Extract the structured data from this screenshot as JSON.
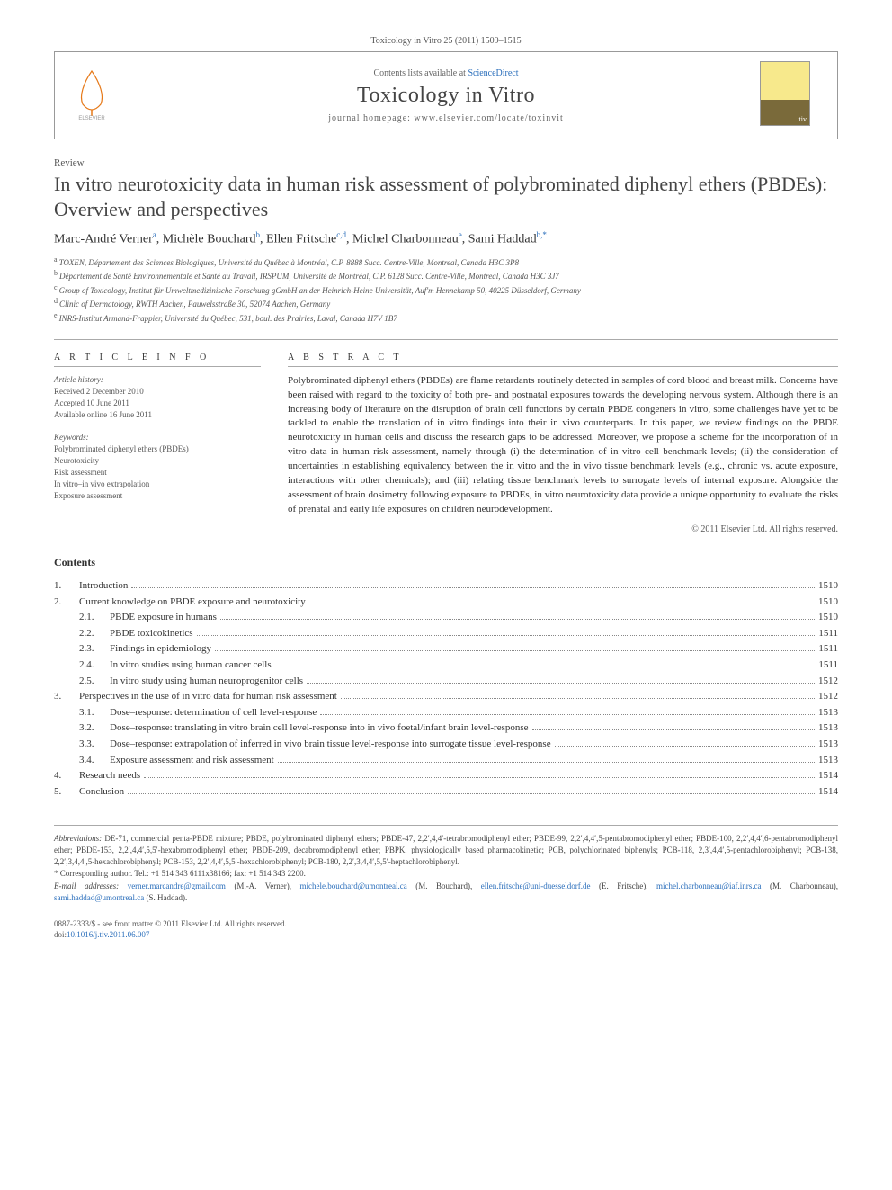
{
  "citation": "Toxicology in Vitro 25 (2011) 1509–1515",
  "masthead": {
    "contents_prefix": "Contents lists available at ",
    "contents_link": "ScienceDirect",
    "journal": "Toxicology in Vitro",
    "homepage": "journal homepage: www.elsevier.com/locate/toxinvit",
    "publisher": "ELSEVIER",
    "cover_label": "Toxicology in Vitro"
  },
  "article": {
    "type": "Review",
    "title": "In vitro neurotoxicity data in human risk assessment of polybrominated diphenyl ethers (PBDEs): Overview and perspectives",
    "authors_html": "Marc-André Verner<sup>a</sup>, Michèle Bouchard<sup>b</sup>, Ellen Fritsche<sup>c,d</sup>, Michel Charbonneau<sup>e</sup>, Sami Haddad<sup>b,*</sup>",
    "affiliations": [
      {
        "sup": "a",
        "text": "TOXEN, Département des Sciences Biologiques, Université du Québec à Montréal, C.P. 8888 Succ. Centre-Ville, Montreal, Canada H3C 3P8"
      },
      {
        "sup": "b",
        "text": "Département de Santé Environnementale et Santé au Travail, IRSPUM, Université de Montréal, C.P. 6128 Succ. Centre-Ville, Montreal, Canada H3C 3J7"
      },
      {
        "sup": "c",
        "text": "Group of Toxicology, Institut für Umweltmedizinische Forschung gGmbH an der Heinrich-Heine Universität, Auf'm Hennekamp 50, 40225 Düsseldorf, Germany"
      },
      {
        "sup": "d",
        "text": "Clinic of Dermatology, RWTH Aachen, Pauwelsstraße 30, 52074 Aachen, Germany"
      },
      {
        "sup": "e",
        "text": "INRS-Institut Armand-Frappier, Université du Québec, 531, boul. des Prairies, Laval, Canada H7V 1B7"
      }
    ]
  },
  "info": {
    "heading": "A R T I C L E   I N F O",
    "history_label": "Article history:",
    "history": [
      "Received 2 December 2010",
      "Accepted 10 June 2011",
      "Available online 16 June 2011"
    ],
    "keywords_label": "Keywords:",
    "keywords": [
      "Polybrominated diphenyl ethers (PBDEs)",
      "Neurotoxicity",
      "Risk assessment",
      "In vitro–in vivo extrapolation",
      "Exposure assessment"
    ]
  },
  "abstract": {
    "heading": "A B S T R A C T",
    "text": "Polybrominated diphenyl ethers (PBDEs) are flame retardants routinely detected in samples of cord blood and breast milk. Concerns have been raised with regard to the toxicity of both pre- and postnatal exposures towards the developing nervous system. Although there is an increasing body of literature on the disruption of brain cell functions by certain PBDE congeners in vitro, some challenges have yet to be tackled to enable the translation of in vitro findings into their in vivo counterparts. In this paper, we review findings on the PBDE neurotoxicity in human cells and discuss the research gaps to be addressed. Moreover, we propose a scheme for the incorporation of in vitro data in human risk assessment, namely through (i) the determination of in vitro cell benchmark levels; (ii) the consideration of uncertainties in establishing equivalency between the in vitro and the in vivo tissue benchmark levels (e.g., chronic vs. acute exposure, interactions with other chemicals); and (iii) relating tissue benchmark levels to surrogate levels of internal exposure. Alongside the assessment of brain dosimetry following exposure to PBDEs, in vitro neurotoxicity data provide a unique opportunity to evaluate the risks of prenatal and early life exposures on children neurodevelopment.",
    "copyright": "© 2011 Elsevier Ltd. All rights reserved."
  },
  "contents": {
    "heading": "Contents",
    "items": [
      {
        "num": "1.",
        "label": "Introduction",
        "page": "1510",
        "sub": []
      },
      {
        "num": "2.",
        "label": "Current knowledge on PBDE exposure and neurotoxicity",
        "page": "1510",
        "sub": [
          {
            "num": "2.1.",
            "label": "PBDE exposure in humans",
            "page": "1510"
          },
          {
            "num": "2.2.",
            "label": "PBDE toxicokinetics",
            "page": "1511"
          },
          {
            "num": "2.3.",
            "label": "Findings in epidemiology",
            "page": "1511"
          },
          {
            "num": "2.4.",
            "label": "In vitro studies using human cancer cells",
            "page": "1511"
          },
          {
            "num": "2.5.",
            "label": "In vitro study using human neuroprogenitor cells",
            "page": "1512"
          }
        ]
      },
      {
        "num": "3.",
        "label": "Perspectives in the use of in vitro data for human risk assessment",
        "page": "1512",
        "sub": [
          {
            "num": "3.1.",
            "label": "Dose–response: determination of cell level-response",
            "page": "1513"
          },
          {
            "num": "3.2.",
            "label": "Dose–response: translating in vitro brain cell level-response into in vivo foetal/infant brain level-response",
            "page": "1513"
          },
          {
            "num": "3.3.",
            "label": "Dose–response: extrapolation of inferred in vivo brain tissue level-response into surrogate tissue level-response",
            "page": "1513"
          },
          {
            "num": "3.4.",
            "label": "Exposure assessment and risk assessment",
            "page": "1513"
          }
        ]
      },
      {
        "num": "4.",
        "label": "Research needs",
        "page": "1514",
        "sub": []
      },
      {
        "num": "5.",
        "label": "Conclusion",
        "page": "1514",
        "sub": []
      }
    ]
  },
  "footnotes": {
    "abbrev_label": "Abbreviations:",
    "abbrev": " DE-71, commercial penta-PBDE mixture; PBDE, polybrominated diphenyl ethers; PBDE-47, 2,2′,4,4′-tetrabromodiphenyl ether; PBDE-99, 2,2′,4,4′,5-pentabromodiphenyl ether; PBDE-100, 2,2′,4,4′,6-pentabromodiphenyl ether; PBDE-153, 2,2′,4,4′,5,5′-hexabromodiphenyl ether; PBDE-209, decabromodiphenyl ether; PBPK, physiologically based pharmacokinetic; PCB, polychlorinated biphenyls; PCB-118, 2,3′,4,4′,5-pentachlorobiphenyl; PCB-138, 2,2′,3,4,4′,5-hexachlorobiphenyl; PCB-153, 2,2′,4,4′,5,5′-hexachlorobiphenyl; PCB-180, 2,2′,3,4,4′,5,5′-heptachlorobiphenyl.",
    "corresponding": "* Corresponding author. Tel.: +1 514 343 6111x38166; fax: +1 514 343 2200.",
    "emails_label": "E-mail addresses:",
    "emails": " verner.marcandre@gmail.com (M.-A. Verner), michele.bouchard@umontreal.ca (M. Bouchard), ellen.fritsche@uni-duesseldorf.de (E. Fritsche), michel.charbonneau@iaf.inrs.ca (M. Charbonneau), sami.haddad@umontreal.ca (S. Haddad)."
  },
  "bottom": {
    "issn": "0887-2333/$ - see front matter © 2011 Elsevier Ltd. All rights reserved.",
    "doi_label": "doi:",
    "doi": "10.1016/j.tiv.2011.06.007"
  },
  "colors": {
    "link": "#2a6ebb",
    "border": "#999999",
    "text": "#333333"
  }
}
